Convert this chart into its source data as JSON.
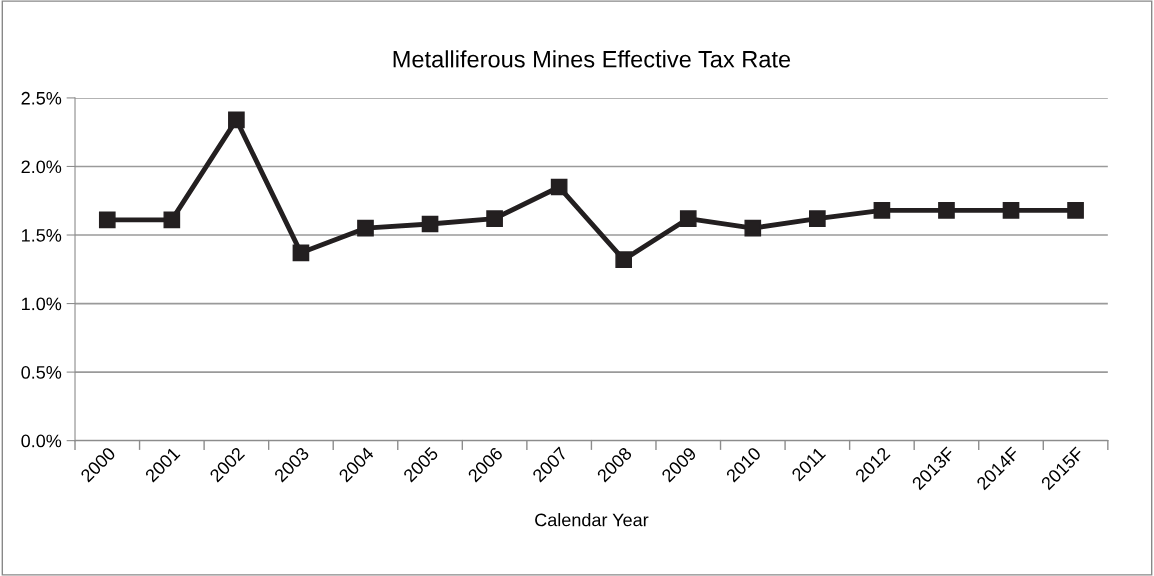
{
  "chart_data": {
    "type": "line",
    "title": "Metalliferous Mines Effective Tax Rate",
    "xlabel": "Calendar Year",
    "categories": [
      "2000",
      "2001",
      "2002",
      "2003",
      "2004",
      "2005",
      "2006",
      "2007",
      "2008",
      "2009",
      "2010",
      "2011",
      "2012",
      "2013F",
      "2014F",
      "2015F"
    ],
    "series": [
      {
        "color": "#231f20",
        "values": [
          1.61,
          1.61,
          2.34,
          1.37,
          1.55,
          1.58,
          1.62,
          1.85,
          1.32,
          1.62,
          1.55,
          1.62,
          1.68,
          1.68,
          1.68,
          1.68
        ]
      }
    ],
    "ylim": [
      0,
      2.5
    ],
    "yticks": [
      {
        "value": 0,
        "label": "0.0%"
      },
      {
        "value": 0.5,
        "label": "0.5%"
      },
      {
        "value": 1.0,
        "label": "1.0%"
      },
      {
        "value": 1.5,
        "label": "1.5%"
      },
      {
        "value": 2.0,
        "label": "2.0%"
      },
      {
        "value": 2.5,
        "label": "2.5%"
      }
    ],
    "grid": "y",
    "marker": "square",
    "line_style": "solid"
  }
}
